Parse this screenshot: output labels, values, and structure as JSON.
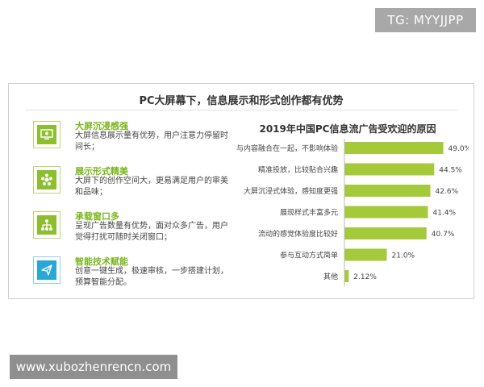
{
  "watermarks": {
    "top": "TG: MYYJJPP",
    "bottom": "www.xubozhenrencn.com"
  },
  "panel": {
    "title": "PC大屏幕下，信息展示和形式创作都有优势"
  },
  "features": [
    {
      "icon": "monitor-icon",
      "title": "大屏沉浸感强",
      "desc": "大屏信息展示量有优势，用户注意力停留时间长；"
    },
    {
      "icon": "star-icon",
      "title": "展示形式精美",
      "desc": "大屏下的创作空间大，更易满足用户的审美和品味；"
    },
    {
      "icon": "hierarchy-icon",
      "title": "承载窗口多",
      "desc": "呈现广告数量有优势，面对众多广告，用户觉得打扰可随时关闭窗口；"
    },
    {
      "icon": "paper-plane-icon",
      "title": "智能技术赋能",
      "desc": "创意一键生成，极速审核，一步搭建计划，预算智能分配。"
    }
  ],
  "colors": {
    "bar": "#a4c93b",
    "accent": "#7ab51d",
    "icon_bg": "#8dbe2d",
    "icon_bg_alt": "#2aa7d6"
  },
  "chart_data": {
    "type": "bar",
    "orientation": "horizontal",
    "title": "2019年中国PC信息流广告受欢迎的原因",
    "categories": [
      "与内容融合在一起，不影响体验",
      "精准投放，比较贴合兴趣",
      "大屏沉浸式体验，感知度更强",
      "展现样式丰富多元",
      "流动的感觉体验度比较好",
      "参与互动方式简单",
      "其他"
    ],
    "values": [
      49.0,
      44.5,
      42.6,
      41.4,
      40.7,
      21.0,
      2.12
    ],
    "labels": [
      "49.0%",
      "44.5%",
      "42.6%",
      "41.4%",
      "40.7%",
      "21.0%",
      "2.12%"
    ],
    "xlim": [
      0,
      60
    ],
    "grid": false
  }
}
